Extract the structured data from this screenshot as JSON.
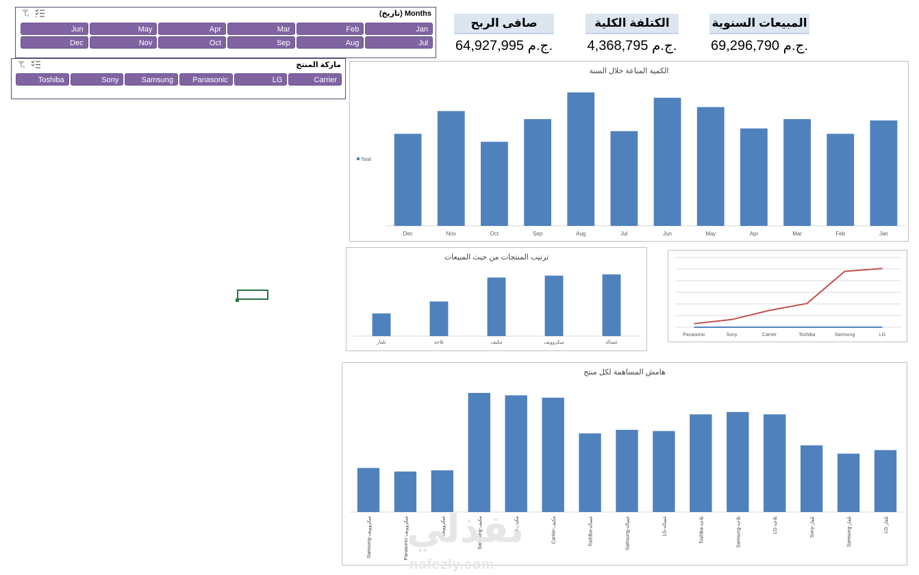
{
  "months_slicer": {
    "title": "Months (تاريخ)",
    "row1": [
      "Jan",
      "Feb",
      "Mar",
      "Apr",
      "May",
      "Jun"
    ],
    "row2": [
      "Jul",
      "Aug",
      "Sep",
      "Oct",
      "Nov",
      "Dec"
    ]
  },
  "brand_slicer": {
    "title": "ماركة المنتج",
    "items": [
      "Carrier",
      "LG",
      "Panasonic",
      "Samsung",
      "Sony",
      "Toshiba"
    ]
  },
  "kpis": [
    {
      "label": "المبيعات السنوية",
      "value": "69,296,790 ج.م."
    },
    {
      "label": "الكتلفة الكلية",
      "value": "4,368,795 ج.م."
    },
    {
      "label": "صافى الربح",
      "value": "64,927,995 ج.م."
    }
  ],
  "colors": {
    "bar": "#4f81bd",
    "slicer": "#8064a2",
    "kpi_bg": "#dce6f1",
    "line_red": "#c0504d"
  },
  "watermark": {
    "logo": "نفذلي",
    "url": "nafezly.com"
  },
  "chart_data": [
    {
      "id": "monthly",
      "type": "bar",
      "title": "الكمية المباعة خلال السنة",
      "legend": "Total",
      "legend_position": "left",
      "categories": [
        "Dec",
        "Nov",
        "Oct",
        "Sep",
        "Aug",
        "Jul",
        "Jun",
        "May",
        "Apr",
        "Mar",
        "Feb",
        "Jan"
      ],
      "values": [
        69,
        86,
        63,
        80,
        100,
        71,
        96,
        89,
        73,
        80,
        69,
        79
      ],
      "ylim": [
        0,
        100
      ],
      "grid": false
    },
    {
      "id": "ranking",
      "type": "bar",
      "title": "ترتيب المنتجات من حيث المبيعات",
      "categories": [
        "تلفاز",
        "ثلاجة",
        "مكيف",
        "ميكروويف",
        "غسالة"
      ],
      "values": [
        36,
        55,
        93,
        96,
        98
      ],
      "ylim": [
        0,
        100
      ],
      "grid": false
    },
    {
      "id": "brand_line",
      "type": "line",
      "categories": [
        "Panasonic",
        "Sony",
        "Carrier",
        "Toshiba",
        "Samsung",
        "LG"
      ],
      "series": [
        {
          "color": "#c0504d",
          "values": [
            5,
            11,
            24,
            34,
            80,
            84
          ]
        },
        {
          "color": "#4f81bd",
          "values": [
            0,
            0,
            0,
            0,
            0,
            0
          ]
        }
      ],
      "ylim": [
        0,
        100
      ],
      "grid": true
    },
    {
      "id": "margin",
      "type": "bar",
      "title": "هامش المساهمة لكل منتج",
      "categories": [
        "Samsung-ميكروويف",
        "Panasonic-ميكروويف",
        "ميكروويف",
        "Samsung-مكيف",
        "LG-مكيف",
        "Carrier-مكيف",
        "Toshiba-غسالة",
        "Samsung-غسالة",
        "LG-غسالة",
        "Toshiba-ثلاجة",
        "Samsung-ثلاجة",
        "LG-ثلاجة",
        "Sony-تلفاز",
        "Samsung-تلفاز",
        "LG-تلفاز"
      ],
      "values": [
        37,
        34,
        35,
        100,
        98,
        96,
        66,
        69,
        68,
        82,
        84,
        82,
        56,
        49,
        52
      ],
      "ylim": [
        0,
        100
      ],
      "grid": false
    }
  ]
}
